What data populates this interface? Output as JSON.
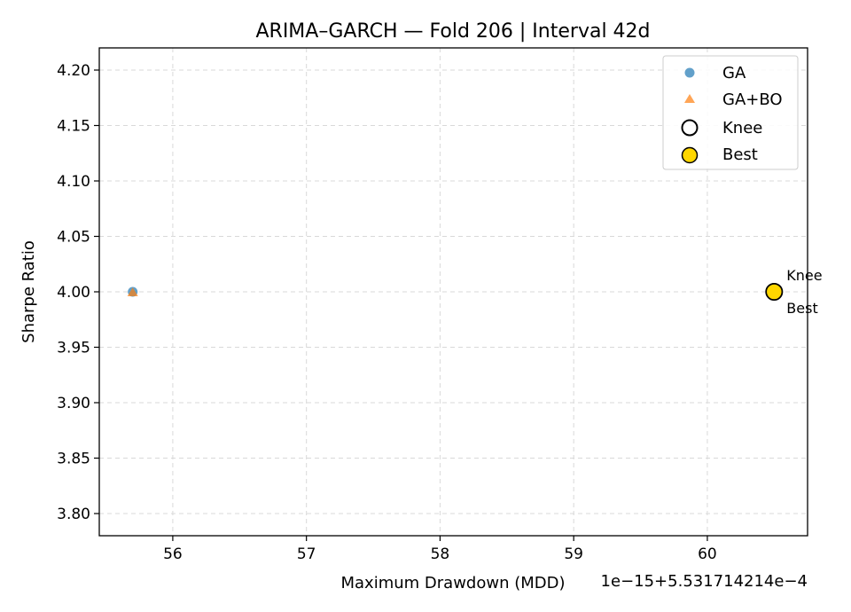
{
  "chart_data": {
    "type": "scatter",
    "title": "ARIMA–GARCH — Fold 206 | Interval 42d",
    "xlabel": "Maximum Drawdown (MDD)",
    "ylabel": "Sharpe Ratio",
    "x_offset_label": "1e−15+5.531714214e−4",
    "xlim": [
      55.45,
      60.75
    ],
    "ylim": [
      3.78,
      4.22
    ],
    "x_ticks": [
      56,
      57,
      58,
      59,
      60
    ],
    "y_ticks": [
      3.8,
      3.85,
      3.9,
      3.95,
      4.0,
      4.05,
      4.1,
      4.15,
      4.2
    ],
    "x_tick_labels": [
      "56",
      "57",
      "58",
      "59",
      "60"
    ],
    "y_tick_labels": [
      "3.80",
      "3.85",
      "3.90",
      "3.95",
      "4.00",
      "4.05",
      "4.10",
      "4.15",
      "4.20"
    ],
    "grid": true,
    "legend_position": "top-right",
    "series": [
      {
        "name": "GA",
        "marker": "circle",
        "color": "#1f77b4",
        "points": [
          {
            "x": 55.7,
            "y": 4.0
          }
        ]
      },
      {
        "name": "GA+BO",
        "marker": "triangle",
        "color": "#ff7f0e",
        "points": [
          {
            "x": 55.7,
            "y": 4.0
          }
        ]
      },
      {
        "name": "Knee",
        "marker": "ring",
        "color": "#000000",
        "points": [
          {
            "x": 60.5,
            "y": 4.0
          }
        ]
      },
      {
        "name": "Best",
        "marker": "gold-circle",
        "color": "#ffd700",
        "points": [
          {
            "x": 60.5,
            "y": 4.0
          }
        ]
      }
    ],
    "annotations": [
      {
        "text": "Knee",
        "x": 60.5,
        "y": 4.0,
        "position": "above-right"
      },
      {
        "text": "Best",
        "x": 60.5,
        "y": 4.0,
        "position": "below-right"
      }
    ]
  }
}
